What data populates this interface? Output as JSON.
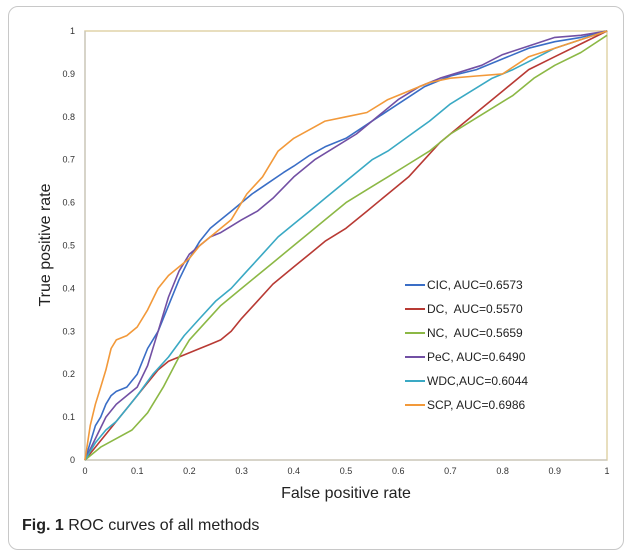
{
  "chart_data": {
    "type": "line",
    "xlabel": "False positive rate",
    "ylabel": "True positive rate",
    "xlim": [
      0,
      1
    ],
    "ylim": [
      0,
      1
    ],
    "x_ticks": [
      "0",
      "0.1",
      "0.2",
      "0.3",
      "0.4",
      "0.5",
      "0.6",
      "0.7",
      "0.8",
      "0.9",
      "1"
    ],
    "y_ticks": [
      "0",
      "0.1",
      "0.2",
      "0.3",
      "0.4",
      "0.5",
      "0.6",
      "0.7",
      "0.8",
      "0.9",
      "1"
    ],
    "grid": false,
    "legend_position": "right-center",
    "series": [
      {
        "name": "CIC, AUC=0.6573",
        "color": "#3a6ec6",
        "points": [
          [
            0,
            0
          ],
          [
            0.01,
            0.04
          ],
          [
            0.02,
            0.08
          ],
          [
            0.03,
            0.1
          ],
          [
            0.04,
            0.13
          ],
          [
            0.05,
            0.15
          ],
          [
            0.06,
            0.16
          ],
          [
            0.08,
            0.17
          ],
          [
            0.1,
            0.2
          ],
          [
            0.12,
            0.26
          ],
          [
            0.14,
            0.3
          ],
          [
            0.16,
            0.36
          ],
          [
            0.18,
            0.42
          ],
          [
            0.2,
            0.47
          ],
          [
            0.22,
            0.51
          ],
          [
            0.24,
            0.54
          ],
          [
            0.26,
            0.56
          ],
          [
            0.28,
            0.58
          ],
          [
            0.3,
            0.6
          ],
          [
            0.32,
            0.62
          ],
          [
            0.35,
            0.645
          ],
          [
            0.38,
            0.67
          ],
          [
            0.4,
            0.685
          ],
          [
            0.43,
            0.71
          ],
          [
            0.46,
            0.73
          ],
          [
            0.5,
            0.75
          ],
          [
            0.55,
            0.79
          ],
          [
            0.6,
            0.83
          ],
          [
            0.65,
            0.87
          ],
          [
            0.7,
            0.895
          ],
          [
            0.75,
            0.91
          ],
          [
            0.8,
            0.935
          ],
          [
            0.85,
            0.96
          ],
          [
            0.9,
            0.975
          ],
          [
            0.95,
            0.985
          ],
          [
            1,
            1
          ]
        ]
      },
      {
        "name": "DC,  AUC=0.5570",
        "color": "#b83a34",
        "points": [
          [
            0,
            0
          ],
          [
            0.02,
            0.03
          ],
          [
            0.04,
            0.06
          ],
          [
            0.06,
            0.09
          ],
          [
            0.08,
            0.12
          ],
          [
            0.1,
            0.15
          ],
          [
            0.12,
            0.18
          ],
          [
            0.14,
            0.21
          ],
          [
            0.16,
            0.23
          ],
          [
            0.18,
            0.24
          ],
          [
            0.2,
            0.25
          ],
          [
            0.22,
            0.26
          ],
          [
            0.24,
            0.27
          ],
          [
            0.26,
            0.28
          ],
          [
            0.28,
            0.3
          ],
          [
            0.3,
            0.33
          ],
          [
            0.33,
            0.37
          ],
          [
            0.36,
            0.41
          ],
          [
            0.4,
            0.45
          ],
          [
            0.43,
            0.48
          ],
          [
            0.46,
            0.51
          ],
          [
            0.5,
            0.54
          ],
          [
            0.54,
            0.58
          ],
          [
            0.58,
            0.62
          ],
          [
            0.62,
            0.66
          ],
          [
            0.65,
            0.7
          ],
          [
            0.68,
            0.74
          ],
          [
            0.72,
            0.78
          ],
          [
            0.76,
            0.82
          ],
          [
            0.8,
            0.86
          ],
          [
            0.85,
            0.91
          ],
          [
            0.9,
            0.94
          ],
          [
            0.95,
            0.97
          ],
          [
            1,
            1
          ]
        ]
      },
      {
        "name": "NC,  AUC=0.5659",
        "color": "#8cb845",
        "points": [
          [
            0,
            0
          ],
          [
            0.03,
            0.03
          ],
          [
            0.06,
            0.05
          ],
          [
            0.09,
            0.07
          ],
          [
            0.12,
            0.11
          ],
          [
            0.15,
            0.17
          ],
          [
            0.18,
            0.24
          ],
          [
            0.2,
            0.28
          ],
          [
            0.23,
            0.32
          ],
          [
            0.26,
            0.36
          ],
          [
            0.3,
            0.4
          ],
          [
            0.33,
            0.43
          ],
          [
            0.36,
            0.46
          ],
          [
            0.4,
            0.5
          ],
          [
            0.43,
            0.53
          ],
          [
            0.46,
            0.56
          ],
          [
            0.5,
            0.6
          ],
          [
            0.54,
            0.63
          ],
          [
            0.58,
            0.66
          ],
          [
            0.62,
            0.69
          ],
          [
            0.66,
            0.72
          ],
          [
            0.7,
            0.76
          ],
          [
            0.74,
            0.79
          ],
          [
            0.78,
            0.82
          ],
          [
            0.82,
            0.85
          ],
          [
            0.86,
            0.89
          ],
          [
            0.9,
            0.92
          ],
          [
            0.95,
            0.95
          ],
          [
            1,
            0.99
          ]
        ]
      },
      {
        "name": "PeC, AUC=0.6490",
        "color": "#7250a4",
        "points": [
          [
            0,
            0
          ],
          [
            0.02,
            0.05
          ],
          [
            0.04,
            0.1
          ],
          [
            0.06,
            0.13
          ],
          [
            0.08,
            0.15
          ],
          [
            0.1,
            0.17
          ],
          [
            0.12,
            0.22
          ],
          [
            0.14,
            0.3
          ],
          [
            0.16,
            0.38
          ],
          [
            0.18,
            0.44
          ],
          [
            0.2,
            0.48
          ],
          [
            0.22,
            0.5
          ],
          [
            0.24,
            0.52
          ],
          [
            0.26,
            0.53
          ],
          [
            0.28,
            0.545
          ],
          [
            0.3,
            0.56
          ],
          [
            0.33,
            0.58
          ],
          [
            0.36,
            0.61
          ],
          [
            0.4,
            0.66
          ],
          [
            0.44,
            0.7
          ],
          [
            0.48,
            0.73
          ],
          [
            0.52,
            0.76
          ],
          [
            0.56,
            0.8
          ],
          [
            0.6,
            0.84
          ],
          [
            0.64,
            0.87
          ],
          [
            0.68,
            0.89
          ],
          [
            0.72,
            0.905
          ],
          [
            0.76,
            0.92
          ],
          [
            0.8,
            0.945
          ],
          [
            0.85,
            0.965
          ],
          [
            0.9,
            0.985
          ],
          [
            0.95,
            0.99
          ],
          [
            1,
            1
          ]
        ]
      },
      {
        "name": "WDC,AUC=0.6044",
        "color": "#3aa9c4",
        "points": [
          [
            0,
            0
          ],
          [
            0.02,
            0.04
          ],
          [
            0.04,
            0.07
          ],
          [
            0.06,
            0.09
          ],
          [
            0.08,
            0.12
          ],
          [
            0.1,
            0.15
          ],
          [
            0.13,
            0.2
          ],
          [
            0.16,
            0.24
          ],
          [
            0.19,
            0.29
          ],
          [
            0.22,
            0.33
          ],
          [
            0.25,
            0.37
          ],
          [
            0.28,
            0.4
          ],
          [
            0.31,
            0.44
          ],
          [
            0.34,
            0.48
          ],
          [
            0.37,
            0.52
          ],
          [
            0.4,
            0.55
          ],
          [
            0.43,
            0.58
          ],
          [
            0.46,
            0.61
          ],
          [
            0.49,
            0.64
          ],
          [
            0.52,
            0.67
          ],
          [
            0.55,
            0.7
          ],
          [
            0.58,
            0.72
          ],
          [
            0.62,
            0.755
          ],
          [
            0.66,
            0.79
          ],
          [
            0.7,
            0.83
          ],
          [
            0.74,
            0.86
          ],
          [
            0.78,
            0.89
          ],
          [
            0.82,
            0.91
          ],
          [
            0.86,
            0.935
          ],
          [
            0.9,
            0.96
          ],
          [
            0.95,
            0.98
          ],
          [
            1,
            1
          ]
        ]
      },
      {
        "name": "SCP, AUC=0.6986",
        "color": "#f2993a",
        "points": [
          [
            0,
            0
          ],
          [
            0.01,
            0.08
          ],
          [
            0.02,
            0.13
          ],
          [
            0.03,
            0.17
          ],
          [
            0.04,
            0.21
          ],
          [
            0.05,
            0.26
          ],
          [
            0.06,
            0.28
          ],
          [
            0.08,
            0.29
          ],
          [
            0.1,
            0.31
          ],
          [
            0.12,
            0.35
          ],
          [
            0.14,
            0.4
          ],
          [
            0.16,
            0.43
          ],
          [
            0.18,
            0.45
          ],
          [
            0.2,
            0.47
          ],
          [
            0.22,
            0.5
          ],
          [
            0.25,
            0.53
          ],
          [
            0.28,
            0.56
          ],
          [
            0.31,
            0.62
          ],
          [
            0.34,
            0.66
          ],
          [
            0.37,
            0.72
          ],
          [
            0.4,
            0.75
          ],
          [
            0.43,
            0.77
          ],
          [
            0.46,
            0.79
          ],
          [
            0.5,
            0.8
          ],
          [
            0.54,
            0.81
          ],
          [
            0.58,
            0.84
          ],
          [
            0.62,
            0.86
          ],
          [
            0.66,
            0.88
          ],
          [
            0.7,
            0.89
          ],
          [
            0.75,
            0.895
          ],
          [
            0.8,
            0.9
          ],
          [
            0.85,
            0.94
          ],
          [
            0.9,
            0.96
          ],
          [
            0.95,
            0.98
          ],
          [
            1,
            1
          ]
        ]
      }
    ]
  },
  "caption": {
    "label": "Fig. 1",
    "text": " ROC curves of all methods"
  }
}
